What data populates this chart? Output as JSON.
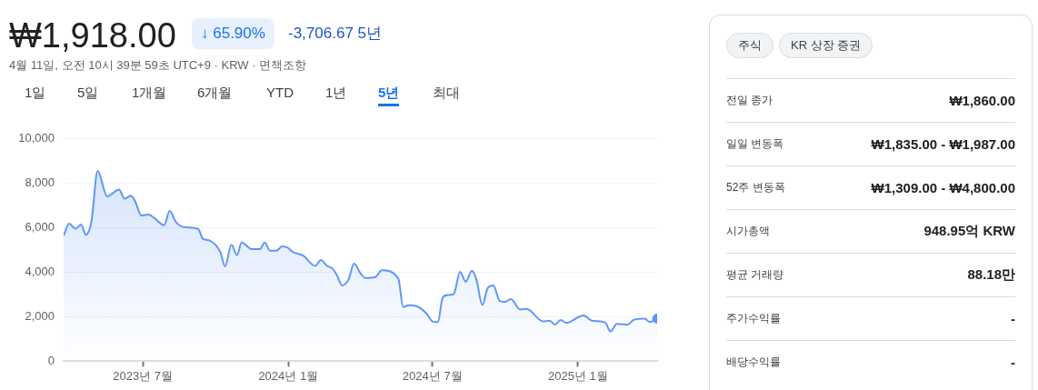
{
  "chart_data": [
    {
      "type": "area",
      "title": "₩1,918.00",
      "subtitle": "4월 11일, 오전 10시 39분 59초 UTC+9 · KRW · 면책조항",
      "annotations": [
        "↓ 65.90%",
        "-3,706.67 5년",
        "1일",
        "5일",
        "1개월",
        "6개월",
        "YTD",
        "1년",
        "5년",
        "최대"
      ],
      "xlim": [
        "2023-03-23",
        "2025-04-11"
      ],
      "xticks": [
        {
          "value": "2023-07",
          "label": "2023년 7월"
        },
        {
          "value": "2024-01",
          "label": "2024년 1월"
        },
        {
          "value": "2024-07",
          "label": "2024년 7월"
        },
        {
          "value": "2025-01",
          "label": "2025년 1월"
        }
      ],
      "ylim": [
        0,
        10000
      ],
      "yticks": [
        0,
        {
          "value": 2000,
          "label": "2,000"
        },
        {
          "value": 4000,
          "label": "4,000"
        },
        {
          "value": 6000,
          "label": "6,000"
        },
        {
          "value": 8000,
          "label": "8,000"
        },
        {
          "value": 10000,
          "label": "10,000"
        }
      ],
      "grid": "y",
      "series": [
        {
          "type": "area",
          "color": "#5e97f6",
          "x": [
            "2023-03-23",
            "2023-03-30",
            "2023-04-07",
            "2023-04-14",
            "2023-04-20",
            "2023-04-27",
            "2023-05-05",
            "2023-05-17",
            "2023-06-01",
            "2023-06-08",
            "2023-06-16",
            "2023-06-22",
            "2023-06-29",
            "2023-07-08",
            "2023-07-15",
            "2023-07-28",
            "2023-08-04",
            "2023-08-12",
            "2023-08-20",
            "2023-08-28",
            "2023-09-09",
            "2023-09-15",
            "2023-09-24",
            "2023-10-07",
            "2023-10-13",
            "2023-10-21",
            "2023-10-28",
            "2023-11-03",
            "2023-11-16",
            "2023-11-26",
            "2023-12-02",
            "2023-12-09",
            "2023-12-17",
            "2023-12-24",
            "2023-12-31",
            "2024-01-07",
            "2024-01-20",
            "2024-02-04",
            "2024-02-11",
            "2024-02-19",
            "2024-02-26",
            "2024-03-02",
            "2024-03-09",
            "2024-03-17",
            "2024-03-24",
            "2024-04-01",
            "2024-04-07",
            "2024-04-20",
            "2024-04-28",
            "2024-05-19",
            "2024-05-25",
            "2024-06-01",
            "2024-06-10",
            "2024-06-24",
            "2024-07-01",
            "2024-07-08",
            "2024-07-14",
            "2024-07-21",
            "2024-07-28",
            "2024-08-05",
            "2024-08-12",
            "2024-08-20",
            "2024-08-26",
            "2024-09-02",
            "2024-09-09",
            "2024-09-16",
            "2024-09-24",
            "2024-10-01",
            "2024-10-08",
            "2024-10-20",
            "2024-10-28",
            "2024-11-18",
            "2024-11-26",
            "2024-12-03",
            "2024-12-10",
            "2024-12-17",
            "2025-01-08",
            "2025-01-18",
            "2025-01-31",
            "2025-02-05",
            "2025-02-11",
            "2025-02-19",
            "2025-03-05",
            "2025-03-12",
            "2025-03-26",
            "2025-04-02",
            "2025-04-11"
          ],
          "values": [
            5650,
            6190,
            5960,
            6150,
            5690,
            6260,
            8560,
            7410,
            7720,
            7310,
            7450,
            7140,
            6560,
            6600,
            6460,
            6120,
            6760,
            6260,
            6050,
            6020,
            5950,
            5510,
            5420,
            4910,
            4270,
            5240,
            4770,
            5340,
            5040,
            5040,
            5340,
            4970,
            4970,
            5170,
            5110,
            4910,
            4740,
            4290,
            4550,
            4290,
            4160,
            3890,
            3410,
            3680,
            4390,
            3960,
            3750,
            3790,
            4090,
            3710,
            2440,
            2520,
            2490,
            2130,
            1790,
            1760,
            2870,
            2980,
            3030,
            4020,
            3580,
            4070,
            3620,
            2530,
            3300,
            3410,
            2710,
            2670,
            2800,
            2330,
            2360,
            1790,
            1830,
            1650,
            1860,
            1730,
            2060,
            1830,
            1790,
            1720,
            1340,
            1680,
            1650,
            1860,
            1920,
            1760,
            1920
          ]
        },
        {
          "type": "scatter",
          "color": "#5e97f6",
          "x": [
            "2025-04-11"
          ],
          "values": [
            1920
          ]
        }
      ]
    },
    {
      "type": "other",
      "annotations": [
        "주식",
        "KR 상장 증권",
        "전일 종가",
        "₩1,860.00",
        "일일 변동폭",
        "₩1,835.00 - ₩1,987.00",
        "52주 변동폭",
        "₩1,309.00 - ₩4,800.00",
        "시가총액",
        "948.95억 KRW",
        "평균 거래량",
        "88.18만",
        "주가수익률",
        "-",
        "배당수익률",
        "-"
      ]
    }
  ]
}
